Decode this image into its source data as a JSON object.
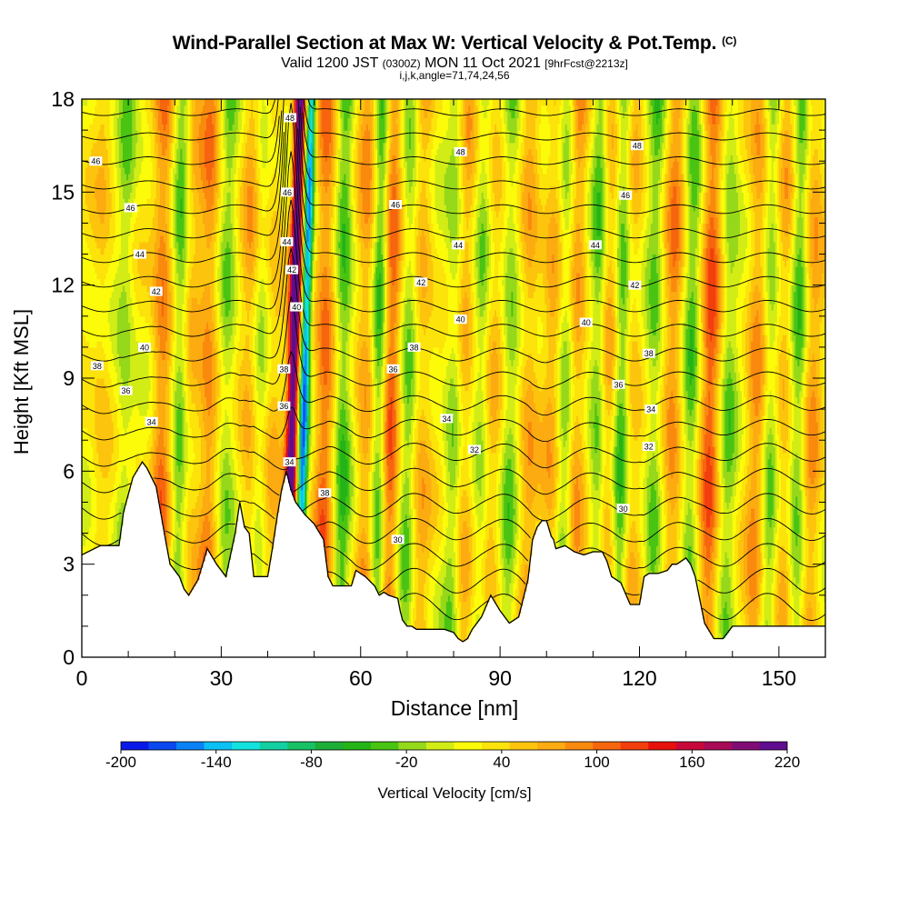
{
  "header": {
    "title": "Wind-Parallel Section at Max W: Vertical Velocity & Pot.Temp.",
    "copyright": "(C)",
    "valid_a": "Valid 1200 JST ",
    "valid_b": "(0300Z)",
    "valid_c": " MON 11 Oct 2021 ",
    "valid_d": "[9hrFcst@2213z]",
    "indices": "i,j,k,angle=71,74,24,56"
  },
  "chart_data": {
    "type": "heatmap",
    "title": "Wind-Parallel Section at Max W: Vertical Velocity & Pot.Temp.",
    "xlabel": "Distance [nm]",
    "ylabel": "Height [Kft MSL]",
    "xlim": [
      0,
      160
    ],
    "ylim": [
      0,
      18
    ],
    "x_ticks": [
      0,
      30,
      60,
      90,
      120,
      150
    ],
    "y_ticks": [
      0,
      3,
      6,
      9,
      12,
      15,
      18
    ],
    "colorbar": {
      "label": "Vertical Velocity [cm/s]",
      "tick_labels": [
        "-200",
        "-140",
        "-80",
        "-20",
        "40",
        "100",
        "160",
        "220"
      ],
      "tick_values": [
        -200,
        -140,
        -80,
        -20,
        40,
        100,
        160,
        220
      ],
      "colors": [
        "#0b19e8",
        "#0a48f0",
        "#0a82f5",
        "#0ac0f5",
        "#12e2de",
        "#12d0a2",
        "#18c066",
        "#1dae38",
        "#24b418",
        "#4ac412",
        "#96d81a",
        "#d2ec16",
        "#fcfc0a",
        "#fce30a",
        "#fcc40c",
        "#fcab10",
        "#fa8a0e",
        "#f7650e",
        "#f33e0e",
        "#e8100a",
        "#c8083a",
        "#a80a56",
        "#820c76",
        "#600c8e"
      ]
    },
    "updrafts": [
      {
        "x": 4,
        "strength": 25
      },
      {
        "x": 17,
        "strength": 70
      },
      {
        "x": 23,
        "strength": 35
      },
      {
        "x": 27,
        "strength": 60
      },
      {
        "x": 36,
        "strength": 45
      },
      {
        "x": 41,
        "strength": 30
      },
      {
        "x": 45,
        "strength": 200
      },
      {
        "x": 52,
        "strength": 75
      },
      {
        "x": 61,
        "strength": 55
      },
      {
        "x": 66,
        "strength": 95
      },
      {
        "x": 73,
        "strength": 40
      },
      {
        "x": 82,
        "strength": 45
      },
      {
        "x": 88,
        "strength": 35
      },
      {
        "x": 96,
        "strength": 45
      },
      {
        "x": 101,
        "strength": 40
      },
      {
        "x": 106,
        "strength": 60
      },
      {
        "x": 113,
        "strength": 50
      },
      {
        "x": 118,
        "strength": 40
      },
      {
        "x": 127,
        "strength": 60
      },
      {
        "x": 135,
        "strength": 85
      },
      {
        "x": 145,
        "strength": 55
      },
      {
        "x": 151,
        "strength": 40
      },
      {
        "x": 157,
        "strength": 50
      }
    ],
    "downdrafts": [
      {
        "x": 9,
        "strength": 35
      },
      {
        "x": 21,
        "strength": 60
      },
      {
        "x": 31,
        "strength": 40
      },
      {
        "x": 38,
        "strength": 30
      },
      {
        "x": 47.5,
        "strength": 180
      },
      {
        "x": 56,
        "strength": 60
      },
      {
        "x": 64,
        "strength": 90
      },
      {
        "x": 70,
        "strength": 45
      },
      {
        "x": 80,
        "strength": 45
      },
      {
        "x": 86,
        "strength": 40
      },
      {
        "x": 92,
        "strength": 40
      },
      {
        "x": 104,
        "strength": 55
      },
      {
        "x": 111,
        "strength": 60
      },
      {
        "x": 116,
        "strength": 70
      },
      {
        "x": 123,
        "strength": 45
      },
      {
        "x": 131,
        "strength": 50
      },
      {
        "x": 139,
        "strength": 40
      },
      {
        "x": 148,
        "strength": 45
      },
      {
        "x": 154,
        "strength": 55
      }
    ],
    "terrain_kft": [
      [
        0,
        3.3
      ],
      [
        4,
        3.6
      ],
      [
        8,
        3.6
      ],
      [
        9,
        4.7
      ],
      [
        11,
        5.8
      ],
      [
        13,
        6.3
      ],
      [
        14,
        6.1
      ],
      [
        16,
        5.5
      ],
      [
        18,
        3.8
      ],
      [
        19,
        3.0
      ],
      [
        21,
        2.6
      ],
      [
        22,
        2.2
      ],
      [
        23,
        2.0
      ],
      [
        25,
        2.5
      ],
      [
        27,
        3.5
      ],
      [
        29,
        3.0
      ],
      [
        31,
        2.6
      ],
      [
        33,
        4.0
      ],
      [
        34,
        5.0
      ],
      [
        35,
        4.2
      ],
      [
        36,
        4.0
      ],
      [
        37,
        2.6
      ],
      [
        40,
        2.6
      ],
      [
        41,
        3.5
      ],
      [
        42,
        4.5
      ],
      [
        43,
        5.4
      ],
      [
        44,
        6.0
      ],
      [
        45,
        5.4
      ],
      [
        46,
        5.0
      ],
      [
        48,
        4.6
      ],
      [
        50,
        4.3
      ],
      [
        52,
        3.8
      ],
      [
        53,
        2.6
      ],
      [
        54,
        2.3
      ],
      [
        58,
        2.3
      ],
      [
        59,
        2.8
      ],
      [
        61,
        2.6
      ],
      [
        63,
        2.3
      ],
      [
        64,
        2.0
      ],
      [
        65,
        2.1
      ],
      [
        66,
        2.0
      ],
      [
        68,
        1.9
      ],
      [
        68.5,
        1.5
      ],
      [
        69,
        1.2
      ],
      [
        70,
        1.0
      ],
      [
        71,
        1.0
      ],
      [
        72,
        0.9
      ],
      [
        73,
        0.9
      ],
      [
        78,
        0.9
      ],
      [
        80,
        0.8
      ],
      [
        81,
        0.6
      ],
      [
        82,
        0.5
      ],
      [
        83,
        0.6
      ],
      [
        84,
        0.9
      ],
      [
        86,
        1.3
      ],
      [
        88,
        2.0
      ],
      [
        90,
        1.5
      ],
      [
        92,
        1.1
      ],
      [
        94,
        1.3
      ],
      [
        96,
        2.5
      ],
      [
        97,
        3.8
      ],
      [
        98,
        4.2
      ],
      [
        99,
        4.4
      ],
      [
        100,
        4.4
      ],
      [
        101,
        3.9
      ],
      [
        101.5,
        3.8
      ],
      [
        102,
        3.5
      ],
      [
        104,
        3.6
      ],
      [
        106,
        3.4
      ],
      [
        108,
        3.3
      ],
      [
        110,
        3.4
      ],
      [
        112,
        3.4
      ],
      [
        113,
        3.1
      ],
      [
        114,
        2.6
      ],
      [
        116,
        2.4
      ],
      [
        118,
        1.7
      ],
      [
        120,
        1.7
      ],
      [
        121,
        2.6
      ],
      [
        122,
        2.7
      ],
      [
        124,
        2.7
      ],
      [
        126,
        2.8
      ],
      [
        127,
        3.0
      ],
      [
        128,
        3.0
      ],
      [
        130,
        3.2
      ],
      [
        131,
        3.0
      ],
      [
        132,
        2.6
      ],
      [
        134,
        1.1
      ],
      [
        136,
        0.6
      ],
      [
        138,
        0.6
      ],
      [
        140,
        1.0
      ],
      [
        143,
        1.0
      ],
      [
        152,
        1.0
      ],
      [
        158,
        1.0
      ],
      [
        160,
        1.0
      ]
    ],
    "isentropes": {
      "units": "K offset label",
      "levels": [
        30,
        31,
        32,
        33,
        34,
        35,
        36,
        37,
        38,
        39,
        40,
        41,
        42,
        43,
        44,
        45,
        46,
        47,
        48,
        49,
        50
      ],
      "labeled": [
        {
          "value": "46",
          "x": 3,
          "y": 16.0
        },
        {
          "value": "46",
          "x": 10.5,
          "y": 14.5
        },
        {
          "value": "44",
          "x": 12.5,
          "y": 13.0
        },
        {
          "value": "42",
          "x": 16,
          "y": 11.8
        },
        {
          "value": "40",
          "x": 13.5,
          "y": 10.0
        },
        {
          "value": "38",
          "x": 3.3,
          "y": 9.4
        },
        {
          "value": "36",
          "x": 9.5,
          "y": 8.6
        },
        {
          "value": "34",
          "x": 15,
          "y": 7.6
        },
        {
          "value": "48",
          "x": 44.8,
          "y": 17.4
        },
        {
          "value": "46",
          "x": 44.2,
          "y": 15.0
        },
        {
          "value": "44",
          "x": 44.1,
          "y": 13.4
        },
        {
          "value": "42",
          "x": 45.2,
          "y": 12.5
        },
        {
          "value": "40",
          "x": 46.2,
          "y": 11.3
        },
        {
          "value": "38",
          "x": 43.5,
          "y": 9.3
        },
        {
          "value": "36",
          "x": 43.5,
          "y": 8.1
        },
        {
          "value": "34",
          "x": 44.7,
          "y": 6.3
        },
        {
          "value": "38",
          "x": 52.3,
          "y": 5.3
        },
        {
          "value": "30",
          "x": 68,
          "y": 3.8
        },
        {
          "value": "36",
          "x": 67,
          "y": 9.3
        },
        {
          "value": "38",
          "x": 71.5,
          "y": 10.0
        },
        {
          "value": "40",
          "x": 81.5,
          "y": 10.9
        },
        {
          "value": "42",
          "x": 73,
          "y": 12.1
        },
        {
          "value": "44",
          "x": 81,
          "y": 13.3
        },
        {
          "value": "46",
          "x": 67.5,
          "y": 14.6
        },
        {
          "value": "48",
          "x": 81.5,
          "y": 16.3
        },
        {
          "value": "34",
          "x": 78.5,
          "y": 7.7
        },
        {
          "value": "32",
          "x": 84.5,
          "y": 6.7
        },
        {
          "value": "40",
          "x": 108.5,
          "y": 10.8
        },
        {
          "value": "42",
          "x": 119,
          "y": 12.0
        },
        {
          "value": "44",
          "x": 110.5,
          "y": 13.3
        },
        {
          "value": "46",
          "x": 117,
          "y": 14.9
        },
        {
          "value": "48",
          "x": 119.5,
          "y": 16.5
        },
        {
          "value": "38",
          "x": 122,
          "y": 9.8
        },
        {
          "value": "36",
          "x": 115.5,
          "y": 8.8
        },
        {
          "value": "34",
          "x": 122.5,
          "y": 8.0
        },
        {
          "value": "32",
          "x": 122,
          "y": 6.8
        },
        {
          "value": "30",
          "x": 116.5,
          "y": 4.8
        }
      ]
    }
  }
}
